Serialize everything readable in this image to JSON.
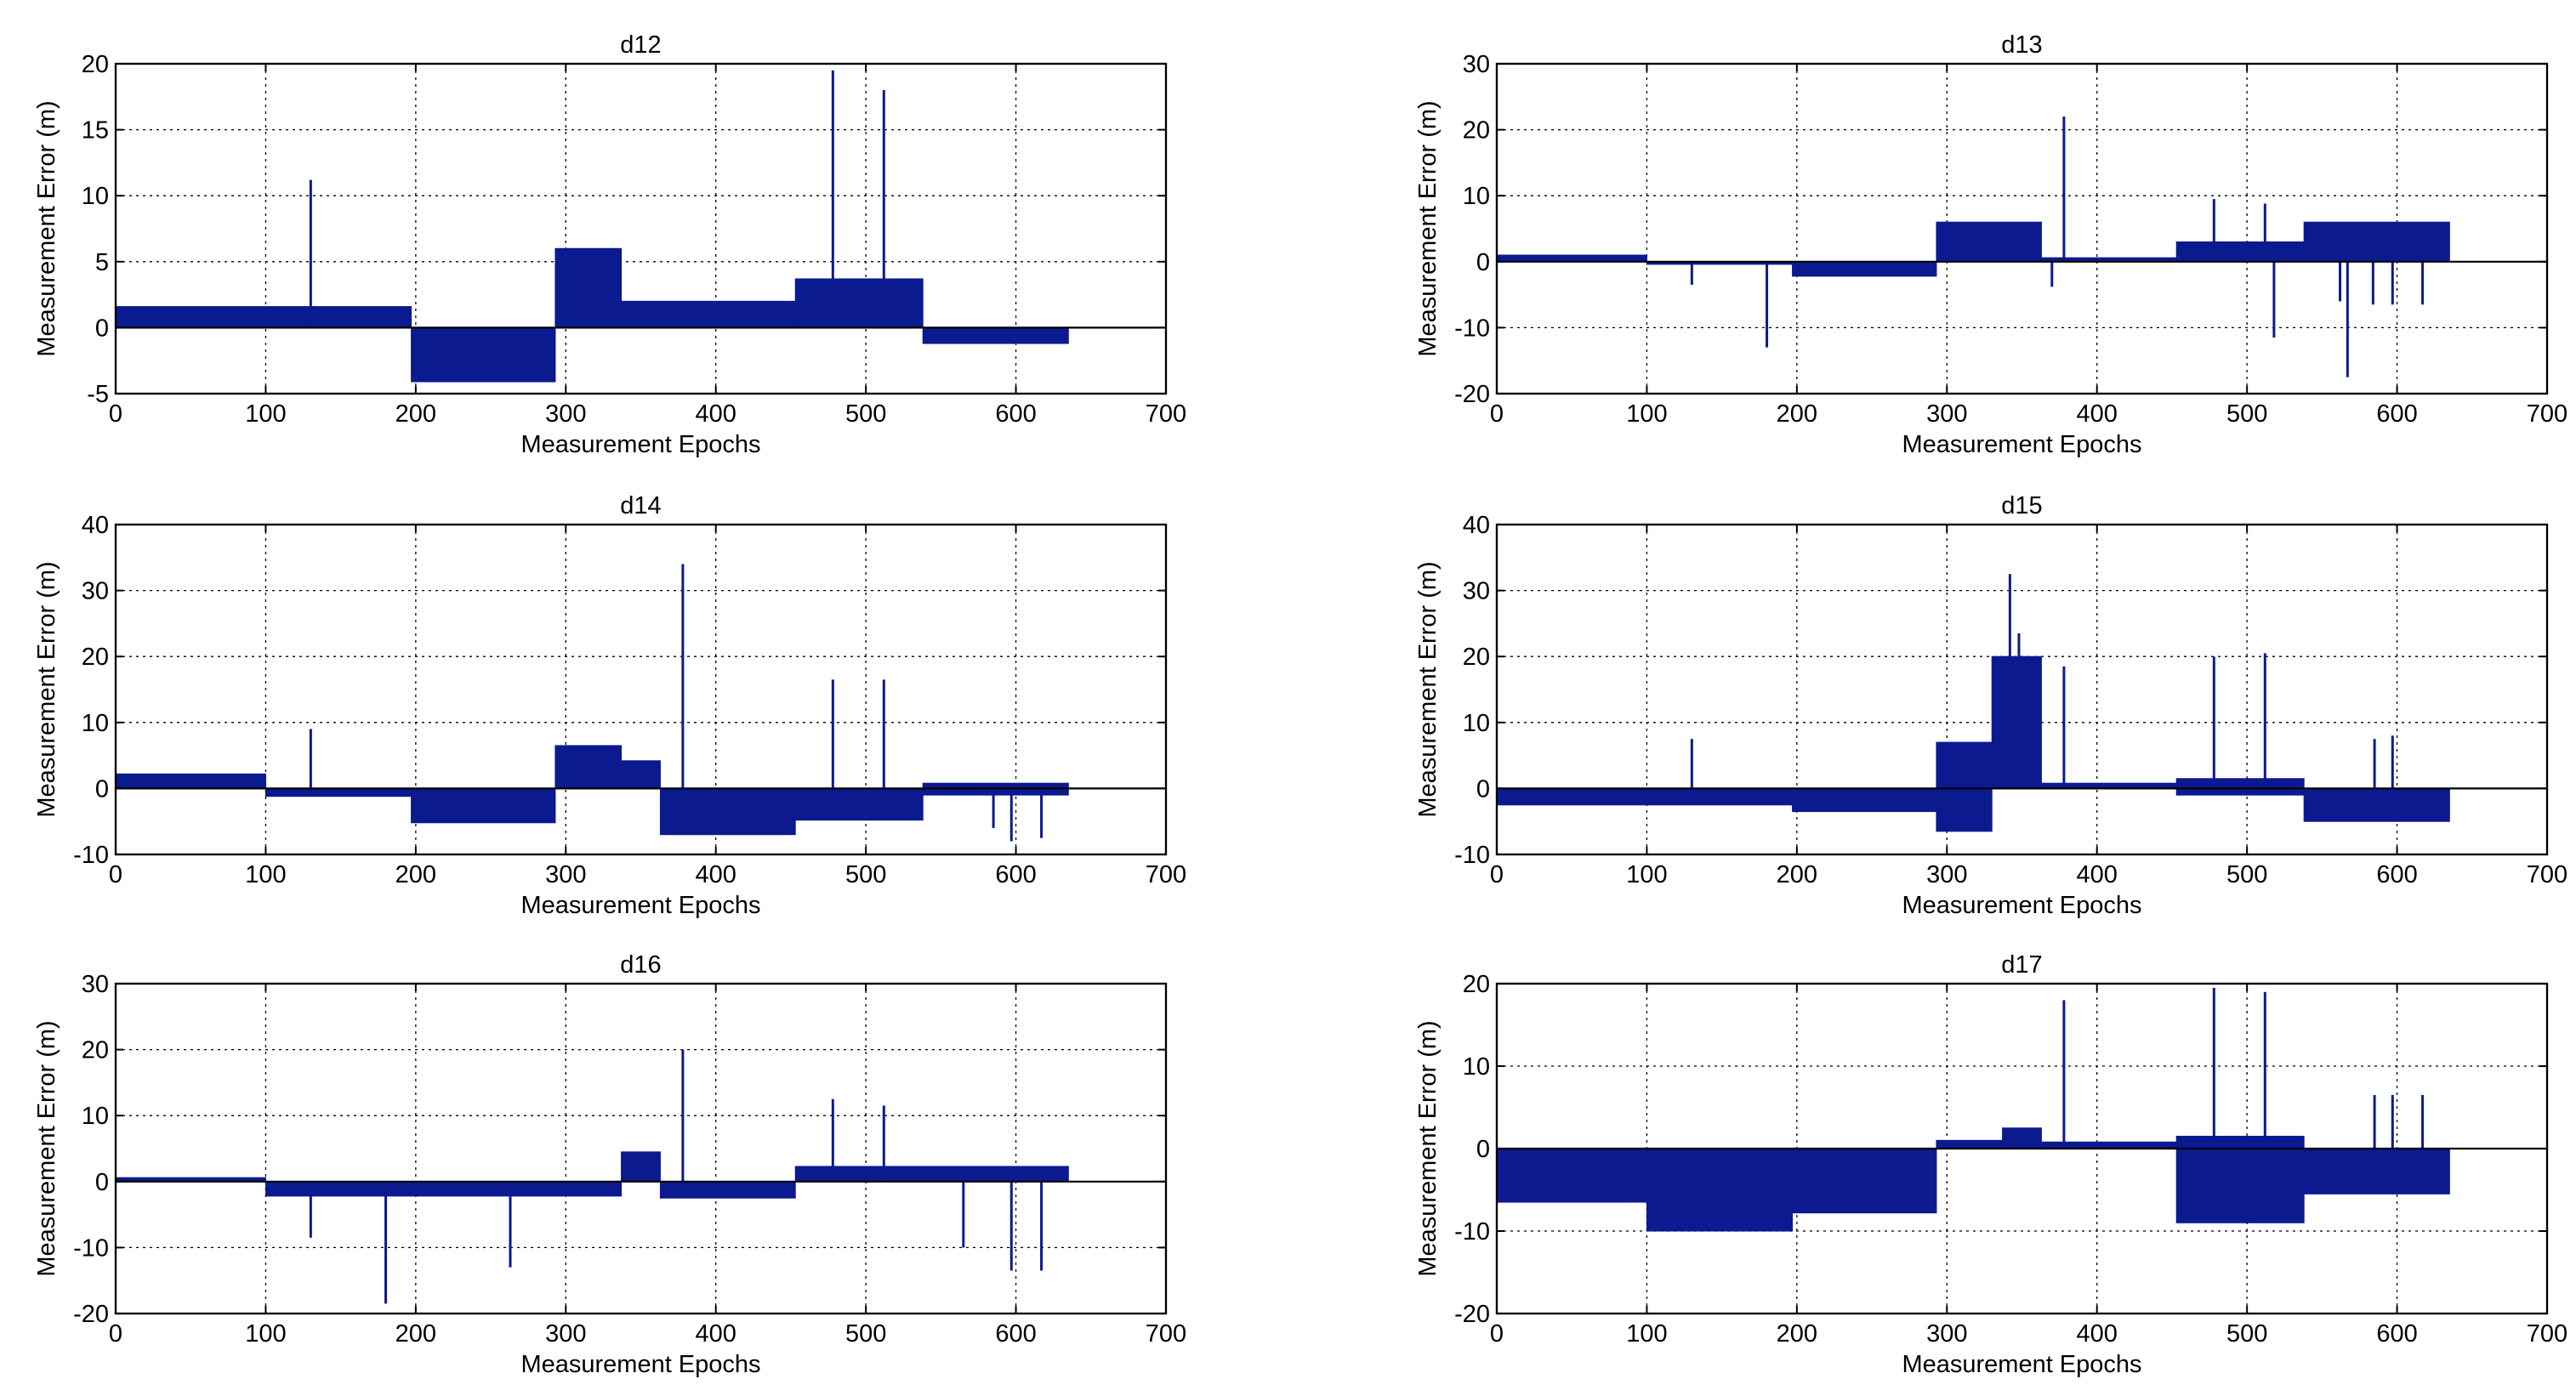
{
  "figure": {
    "colors": {
      "series": "#0b1a8f",
      "axis": "#000000",
      "background": "#ffffff"
    }
  },
  "chart_data": [
    {
      "type": "bar",
      "title": "d12",
      "xlabel": "Measurement Epochs",
      "ylabel": "Measurement Error (m)",
      "xlim": [
        0,
        700
      ],
      "ylim": [
        -5,
        20
      ],
      "xticks": [
        0,
        100,
        200,
        300,
        400,
        500,
        600,
        700
      ],
      "yticks": [
        -5,
        0,
        5,
        10,
        15,
        20
      ],
      "grid": true,
      "segments": [
        {
          "start": 0,
          "end": 197,
          "low": 0,
          "high": 1.6
        },
        {
          "start": 197,
          "end": 293,
          "low": -4.1,
          "high": 0
        },
        {
          "start": 293,
          "end": 337,
          "low": 0,
          "high": 6.0
        },
        {
          "start": 337,
          "end": 453,
          "low": 0,
          "high": 2.0
        },
        {
          "start": 453,
          "end": 538,
          "low": 0,
          "high": 3.7
        },
        {
          "start": 538,
          "end": 635,
          "low": -1.2,
          "high": 0
        }
      ],
      "spikes": [
        {
          "x": 130,
          "y": 11.2
        },
        {
          "x": 478,
          "y": 19.5
        },
        {
          "x": 512,
          "y": 18.0
        }
      ]
    },
    {
      "type": "bar",
      "title": "d13",
      "xlabel": "Measurement Epochs",
      "ylabel": "Measurement Error (m)",
      "xlim": [
        0,
        700
      ],
      "ylim": [
        -20,
        30
      ],
      "xticks": [
        0,
        100,
        200,
        300,
        400,
        500,
        600,
        700
      ],
      "yticks": [
        -20,
        -10,
        0,
        10,
        20,
        30
      ],
      "grid": true,
      "segments": [
        {
          "start": 0,
          "end": 100,
          "low": 0,
          "high": 1.0
        },
        {
          "start": 100,
          "end": 197,
          "low": -0.4,
          "high": 0
        },
        {
          "start": 197,
          "end": 293,
          "low": -2.2,
          "high": 0
        },
        {
          "start": 293,
          "end": 363,
          "low": 0,
          "high": 6.0
        },
        {
          "start": 363,
          "end": 453,
          "low": 0,
          "high": 0.6
        },
        {
          "start": 453,
          "end": 538,
          "low": 0,
          "high": 3.0
        },
        {
          "start": 538,
          "end": 635,
          "low": 0,
          "high": 6.0
        }
      ],
      "spikes": [
        {
          "x": 130,
          "y": -3.5
        },
        {
          "x": 180,
          "y": -13.0
        },
        {
          "x": 370,
          "y": -3.8
        },
        {
          "x": 378,
          "y": 22.0
        },
        {
          "x": 478,
          "y": 9.5
        },
        {
          "x": 512,
          "y": 8.8
        },
        {
          "x": 518,
          "y": -11.5
        },
        {
          "x": 562,
          "y": -6.0
        },
        {
          "x": 567,
          "y": -17.5
        },
        {
          "x": 584,
          "y": -6.5
        },
        {
          "x": 597,
          "y": -6.5
        },
        {
          "x": 617,
          "y": -6.5
        }
      ]
    },
    {
      "type": "bar",
      "title": "d14",
      "xlabel": "Measurement Epochs",
      "ylabel": "Measurement Error (m)",
      "xlim": [
        0,
        700
      ],
      "ylim": [
        -10,
        40
      ],
      "xticks": [
        0,
        100,
        200,
        300,
        400,
        500,
        600,
        700
      ],
      "yticks": [
        -10,
        0,
        10,
        20,
        30,
        40
      ],
      "grid": true,
      "segments": [
        {
          "start": 0,
          "end": 100,
          "low": 0,
          "high": 2.2
        },
        {
          "start": 100,
          "end": 197,
          "low": -1.2,
          "high": 0
        },
        {
          "start": 197,
          "end": 293,
          "low": -5.2,
          "high": 0
        },
        {
          "start": 293,
          "end": 337,
          "low": 0,
          "high": 6.5
        },
        {
          "start": 337,
          "end": 363,
          "low": 0,
          "high": 4.2
        },
        {
          "start": 363,
          "end": 453,
          "low": -7.0,
          "high": 0
        },
        {
          "start": 453,
          "end": 538,
          "low": -4.8,
          "high": 0
        },
        {
          "start": 538,
          "end": 635,
          "low": -1.0,
          "high": 0.8
        }
      ],
      "spikes": [
        {
          "x": 130,
          "y": 9.0
        },
        {
          "x": 378,
          "y": 34.0
        },
        {
          "x": 478,
          "y": 16.5
        },
        {
          "x": 512,
          "y": 16.5
        },
        {
          "x": 585,
          "y": -6.0
        },
        {
          "x": 597,
          "y": -8.0
        },
        {
          "x": 617,
          "y": -7.5
        }
      ]
    },
    {
      "type": "bar",
      "title": "d15",
      "xlabel": "Measurement Epochs",
      "ylabel": "Measurement Error (m)",
      "xlim": [
        0,
        700
      ],
      "ylim": [
        -10,
        40
      ],
      "xticks": [
        0,
        100,
        200,
        300,
        400,
        500,
        600,
        700
      ],
      "yticks": [
        -10,
        0,
        10,
        20,
        30,
        40
      ],
      "grid": true,
      "segments": [
        {
          "start": 0,
          "end": 197,
          "low": -2.5,
          "high": 0
        },
        {
          "start": 197,
          "end": 293,
          "low": -3.5,
          "high": 0
        },
        {
          "start": 293,
          "end": 330,
          "low": -6.5,
          "high": 7.0
        },
        {
          "start": 330,
          "end": 363,
          "low": 0,
          "high": 20.0
        },
        {
          "start": 363,
          "end": 453,
          "low": 0,
          "high": 0.8
        },
        {
          "start": 453,
          "end": 538,
          "low": -1.0,
          "high": 1.5
        },
        {
          "start": 538,
          "end": 635,
          "low": -5.0,
          "high": 0
        }
      ],
      "spikes": [
        {
          "x": 130,
          "y": 7.5
        },
        {
          "x": 342,
          "y": 32.5
        },
        {
          "x": 348,
          "y": 23.5
        },
        {
          "x": 378,
          "y": 18.5
        },
        {
          "x": 478,
          "y": 20.0
        },
        {
          "x": 512,
          "y": 20.5
        },
        {
          "x": 585,
          "y": 7.5
        },
        {
          "x": 597,
          "y": 8.0
        }
      ]
    },
    {
      "type": "bar",
      "title": "d16",
      "xlabel": "Measurement Epochs",
      "ylabel": "Measurement Error (m)",
      "xlim": [
        0,
        700
      ],
      "ylim": [
        -20,
        30
      ],
      "xticks": [
        0,
        100,
        200,
        300,
        400,
        500,
        600,
        700
      ],
      "yticks": [
        -20,
        -10,
        0,
        10,
        20,
        30
      ],
      "grid": true,
      "segments": [
        {
          "start": 0,
          "end": 100,
          "low": 0,
          "high": 0.6
        },
        {
          "start": 100,
          "end": 337,
          "low": -2.2,
          "high": 0
        },
        {
          "start": 337,
          "end": 363,
          "low": 0,
          "high": 4.5
        },
        {
          "start": 363,
          "end": 453,
          "low": -2.5,
          "high": 0
        },
        {
          "start": 453,
          "end": 635,
          "low": 0,
          "high": 2.3
        }
      ],
      "spikes": [
        {
          "x": 130,
          "y": -8.5
        },
        {
          "x": 180,
          "y": -18.5
        },
        {
          "x": 263,
          "y": -13.0
        },
        {
          "x": 378,
          "y": 20.0
        },
        {
          "x": 478,
          "y": 12.5
        },
        {
          "x": 512,
          "y": 11.5
        },
        {
          "x": 565,
          "y": -10.0
        },
        {
          "x": 597,
          "y": -13.5
        },
        {
          "x": 617,
          "y": -13.5
        }
      ]
    },
    {
      "type": "bar",
      "title": "d17",
      "xlabel": "Measurement Epochs",
      "ylabel": "Measurement Error (m)",
      "xlim": [
        0,
        700
      ],
      "ylim": [
        -20,
        20
      ],
      "xticks": [
        0,
        100,
        200,
        300,
        400,
        500,
        600,
        700
      ],
      "yticks": [
        -20,
        -10,
        0,
        10,
        20
      ],
      "grid": true,
      "segments": [
        {
          "start": 0,
          "end": 100,
          "low": -6.5,
          "high": 0
        },
        {
          "start": 100,
          "end": 197,
          "low": -10.0,
          "high": 0
        },
        {
          "start": 197,
          "end": 293,
          "low": -7.8,
          "high": 0
        },
        {
          "start": 293,
          "end": 337,
          "low": 0,
          "high": 1.0
        },
        {
          "start": 337,
          "end": 363,
          "low": 0,
          "high": 2.5
        },
        {
          "start": 363,
          "end": 453,
          "low": 0,
          "high": 0.8
        },
        {
          "start": 453,
          "end": 538,
          "low": -9.0,
          "high": 1.5
        },
        {
          "start": 538,
          "end": 635,
          "low": -5.5,
          "high": 0
        }
      ],
      "spikes": [
        {
          "x": 378,
          "y": 18.0
        },
        {
          "x": 478,
          "y": 19.5
        },
        {
          "x": 512,
          "y": 19.0
        },
        {
          "x": 585,
          "y": 6.5
        },
        {
          "x": 597,
          "y": 6.5
        },
        {
          "x": 617,
          "y": 6.5
        }
      ]
    }
  ]
}
